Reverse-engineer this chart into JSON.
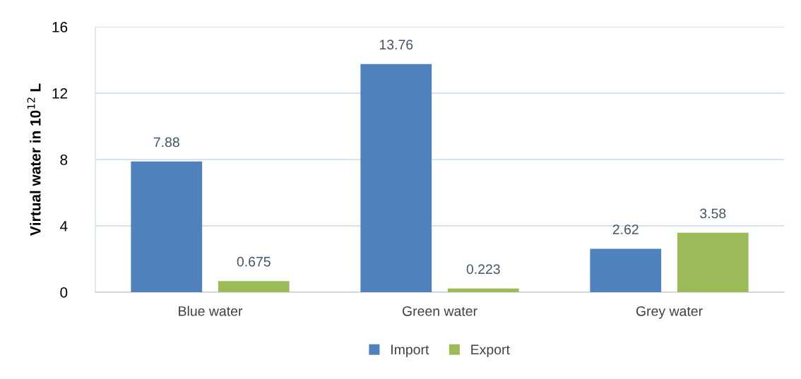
{
  "chart_data": {
    "type": "bar",
    "ylabel": "Virtual water in 10$^{12}$ L",
    "categories": [
      "Blue water",
      "Green water",
      "Grey water"
    ],
    "series": [
      {
        "name": "Import",
        "color": "#4f81bd",
        "values": [
          7.88,
          13.76,
          2.62
        ]
      },
      {
        "name": "Export",
        "color": "#9bbb59",
        "values": [
          0.675,
          0.223,
          3.58
        ]
      }
    ],
    "ylim": [
      0,
      16
    ],
    "yticks": [
      0,
      4,
      8,
      12,
      16
    ],
    "grid": "y",
    "legend": "bottom",
    "data_labels": true
  }
}
